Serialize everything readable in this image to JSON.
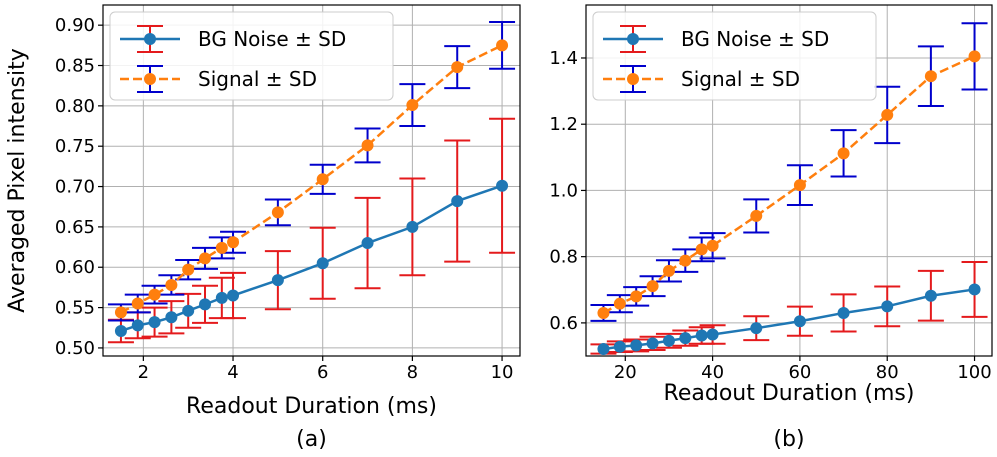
{
  "chart_data": [
    {
      "type": "line",
      "panel_label": "(a)",
      "xlabel": "Readout Duration (ms)",
      "ylabel": "Averaged Pixel intensity",
      "xlim": [
        1.1,
        10.4
      ],
      "ylim": [
        0.49,
        0.925
      ],
      "xticks": [
        2,
        4,
        6,
        8,
        10
      ],
      "yticks": [
        0.5,
        0.55,
        0.6,
        0.65,
        0.7,
        0.75,
        0.8,
        0.85,
        0.9
      ],
      "ytick_labels": [
        "0.50",
        "0.55",
        "0.60",
        "0.65",
        "0.70",
        "0.75",
        "0.80",
        "0.85",
        "0.90"
      ],
      "grid": true,
      "legend": "top-left",
      "series": [
        {
          "name": "BG Noise ± SD",
          "color": "#1f77b4",
          "errcolor": "#e41a1c",
          "linestyle": "solid",
          "x": [
            1.5,
            1.875,
            2.25,
            2.625,
            3.0,
            3.375,
            3.75,
            4,
            5,
            6,
            7,
            8,
            9,
            10
          ],
          "y": [
            0.521,
            0.528,
            0.532,
            0.538,
            0.546,
            0.554,
            0.562,
            0.565,
            0.584,
            0.605,
            0.63,
            0.65,
            0.682,
            0.701
          ],
          "err": [
            0.014,
            0.016,
            0.018,
            0.02,
            0.021,
            0.023,
            0.025,
            0.028,
            0.036,
            0.044,
            0.056,
            0.06,
            0.075,
            0.083
          ]
        },
        {
          "name": "Signal ± SD",
          "color": "#ff7f0e",
          "errcolor": "#0000cc",
          "linestyle": "dashed",
          "x": [
            1.5,
            1.875,
            2.25,
            2.625,
            3.0,
            3.375,
            3.75,
            4,
            5,
            6,
            7,
            8,
            9,
            10
          ],
          "y": [
            0.544,
            0.555,
            0.566,
            0.578,
            0.597,
            0.611,
            0.624,
            0.631,
            0.668,
            0.709,
            0.751,
            0.801,
            0.848,
            0.875
          ],
          "err": [
            0.01,
            0.011,
            0.011,
            0.012,
            0.012,
            0.013,
            0.013,
            0.013,
            0.016,
            0.018,
            0.021,
            0.026,
            0.026,
            0.029
          ]
        }
      ]
    },
    {
      "type": "line",
      "panel_label": "(b)",
      "xlabel": "Readout Duration (ms)",
      "ylabel": "",
      "xlim": [
        11,
        104
      ],
      "ylim": [
        0.5,
        1.56
      ],
      "xticks": [
        20,
        40,
        60,
        80,
        100
      ],
      "yticks": [
        0.6,
        0.8,
        1.0,
        1.2,
        1.4
      ],
      "ytick_labels": [
        "0.6",
        "0.8",
        "1.0",
        "1.2",
        "1.4"
      ],
      "grid": true,
      "legend": "top-left",
      "series": [
        {
          "name": "BG Noise ± SD",
          "color": "#1f77b4",
          "errcolor": "#e41a1c",
          "linestyle": "solid",
          "x": [
            15,
            18.75,
            22.5,
            26.25,
            30,
            33.75,
            37.5,
            40,
            50,
            60,
            70,
            80,
            90,
            100
          ],
          "y": [
            0.521,
            0.528,
            0.532,
            0.538,
            0.546,
            0.554,
            0.562,
            0.565,
            0.584,
            0.605,
            0.63,
            0.65,
            0.682,
            0.701
          ],
          "err": [
            0.014,
            0.016,
            0.018,
            0.02,
            0.021,
            0.023,
            0.025,
            0.028,
            0.036,
            0.044,
            0.056,
            0.06,
            0.075,
            0.083
          ]
        },
        {
          "name": "Signal ± SD",
          "color": "#ff7f0e",
          "errcolor": "#0000cc",
          "linestyle": "dashed",
          "x": [
            15,
            18.75,
            22.5,
            26.25,
            30,
            33.75,
            37.5,
            40,
            50,
            60,
            70,
            80,
            90,
            100
          ],
          "y": [
            0.63,
            0.658,
            0.68,
            0.711,
            0.757,
            0.788,
            0.822,
            0.833,
            0.923,
            1.016,
            1.112,
            1.228,
            1.345,
            1.405
          ],
          "err": [
            0.024,
            0.026,
            0.028,
            0.03,
            0.032,
            0.034,
            0.036,
            0.038,
            0.05,
            0.06,
            0.07,
            0.085,
            0.09,
            0.1
          ]
        }
      ]
    }
  ]
}
